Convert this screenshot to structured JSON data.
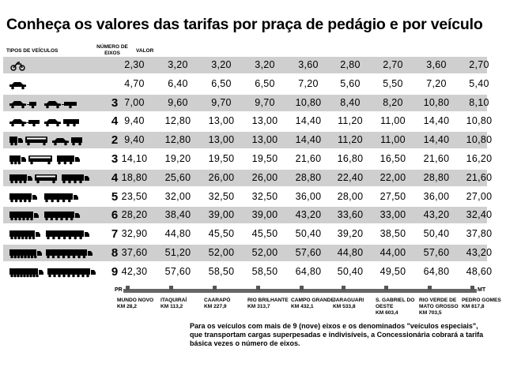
{
  "title": "Conheça os valores das tarifas por praça de pedágio e por veículo",
  "headers": {
    "vehicle_types": "TIPOS DE VEÍCULOS",
    "axle_count": "NÚMERO DE EIXOS",
    "value": "VALOR"
  },
  "rows": [
    {
      "vehicle_icon": "motorcycle-icon",
      "axles": "",
      "values": [
        "2,30",
        "3,20",
        "3,20",
        "3,20",
        "3,60",
        "2,80",
        "2,70",
        "3,60",
        "2,70"
      ]
    },
    {
      "vehicle_icon": "car-icon",
      "axles": "",
      "values": [
        "4,70",
        "6,40",
        "6,50",
        "6,50",
        "7,20",
        "5,60",
        "5,50",
        "7,20",
        "5,40"
      ]
    },
    {
      "vehicle_icon": "car-with-trailer-icon",
      "axles": "3",
      "values": [
        "7,00",
        "9,60",
        "9,70",
        "9,70",
        "10,80",
        "8,40",
        "8,20",
        "10,80",
        "8,10"
      ]
    },
    {
      "vehicle_icon": "car-with-double-trailer-icon",
      "axles": "4",
      "values": [
        "9,40",
        "12,80",
        "13,00",
        "13,00",
        "14,40",
        "11,20",
        "11,00",
        "14,40",
        "10,80"
      ]
    },
    {
      "vehicle_icon": "two-axle-truck-bus-icon",
      "axles": "2",
      "values": [
        "9,40",
        "12,80",
        "13,00",
        "13,00",
        "14,40",
        "11,20",
        "11,00",
        "14,40",
        "10,80"
      ]
    },
    {
      "vehicle_icon": "three-axle-truck-bus-icon",
      "axles": "3",
      "values": [
        "14,10",
        "19,20",
        "19,50",
        "19,50",
        "21,60",
        "16,80",
        "16,50",
        "21,60",
        "16,20"
      ]
    },
    {
      "vehicle_icon": "four-axle-truck-icon",
      "axles": "4",
      "values": [
        "18,80",
        "25,60",
        "26,00",
        "26,00",
        "28,80",
        "22,40",
        "22,00",
        "28,80",
        "21,60"
      ]
    },
    {
      "vehicle_icon": "five-axle-truck-icon",
      "axles": "5",
      "values": [
        "23,50",
        "32,00",
        "32,50",
        "32,50",
        "36,00",
        "28,00",
        "27,50",
        "36,00",
        "27,00"
      ]
    },
    {
      "vehicle_icon": "six-axle-truck-icon",
      "axles": "6",
      "values": [
        "28,20",
        "38,40",
        "39,00",
        "39,00",
        "43,20",
        "33,60",
        "33,00",
        "43,20",
        "32,40"
      ]
    },
    {
      "vehicle_icon": "seven-axle-truck-icon",
      "axles": "7",
      "values": [
        "32,90",
        "44,80",
        "45,50",
        "45,50",
        "50,40",
        "39,20",
        "38,50",
        "50,40",
        "37,80"
      ]
    },
    {
      "vehicle_icon": "eight-axle-truck-icon",
      "axles": "8",
      "values": [
        "37,60",
        "51,20",
        "52,00",
        "52,00",
        "57,60",
        "44,80",
        "44,00",
        "57,60",
        "43,20"
      ]
    },
    {
      "vehicle_icon": "nine-axle-truck-icon",
      "axles": "9",
      "values": [
        "42,30",
        "57,60",
        "58,50",
        "58,50",
        "64,80",
        "50,40",
        "49,50",
        "64,80",
        "48,60"
      ]
    }
  ],
  "route": {
    "start": "PR",
    "end": "MT"
  },
  "plazas": [
    {
      "name": "MUNDO NOVO",
      "km": "KM 28,2"
    },
    {
      "name": "ITAQUIRAÍ",
      "km": "KM 113,2"
    },
    {
      "name": "CAARAPÓ",
      "km": "KM 227,9"
    },
    {
      "name": "RIO BRILHANTE",
      "km": "KM 313,7"
    },
    {
      "name": "CAMPO GRANDE",
      "km": "KM 432,1"
    },
    {
      "name": "JARAGUARI",
      "km": "KM 533,8"
    },
    {
      "name": "S. GABRIEL DO OESTE",
      "km": "KM 603,4"
    },
    {
      "name": "RIO VERDE DE MATO GROSSO",
      "km": "KM 703,5"
    },
    {
      "name": "PEDRO GOMES",
      "km": "KM 817,8"
    }
  ],
  "note": "Para os veículos com mais de 9 (nove) eixos e os denominados \"veículos especiais\", que transportam cargas superpesadas e indivisíveis, a Concessionária cobrará a tarifa básica vezes o número de eixos.",
  "colors": {
    "row_shade": "#cfcfcf",
    "track": "#666666"
  }
}
